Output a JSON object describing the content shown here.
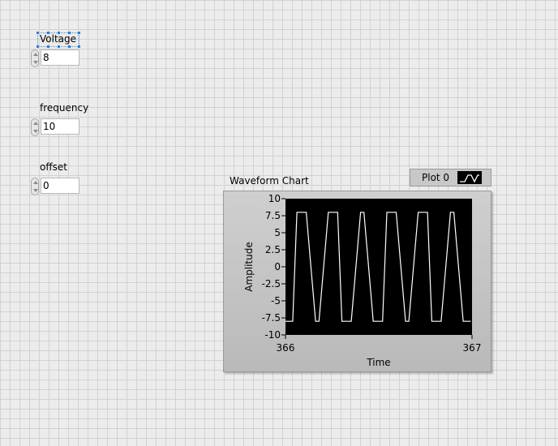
{
  "controls": [
    {
      "label": "Voltage",
      "value": "8"
    },
    {
      "label": "frequency",
      "value": "10"
    },
    {
      "label": "offset",
      "value": "0"
    }
  ],
  "chart": {
    "title": "Waveform Chart",
    "legend_label": "Plot 0"
  },
  "chart_data": {
    "type": "line",
    "title": "Waveform Chart",
    "xlabel": "Time",
    "ylabel": "Amplitude",
    "xlim": [
      366,
      367
    ],
    "ylim": [
      -10,
      10
    ],
    "x_ticks": [
      "366",
      "367"
    ],
    "y_ticks": [
      "10",
      "7.5",
      "5",
      "2.5",
      "0",
      "-2.5",
      "-5",
      "-7.5",
      "-10"
    ],
    "series": [
      {
        "name": "Plot 0",
        "color": "#ffffff",
        "x": [
          366.0,
          366.0385,
          366.0615,
          366.1115,
          366.1615,
          366.1795,
          366.2295,
          366.2795,
          366.3025,
          366.3525,
          366.4025,
          366.4205,
          366.4705,
          366.5205,
          366.5435,
          366.5935,
          366.6435,
          366.6615,
          366.7115,
          366.7615,
          366.7845,
          366.8345,
          366.8845,
          366.9025,
          366.9525,
          366.9935
        ],
        "y": [
          -8,
          -8,
          8,
          8,
          -8,
          -8,
          8,
          8,
          -8,
          -8,
          8,
          8,
          -8,
          -8,
          8,
          8,
          -8,
          -8,
          8,
          8,
          -8,
          -8,
          8,
          8,
          -8,
          -8
        ]
      }
    ],
    "background": "#000000",
    "grid": false
  }
}
